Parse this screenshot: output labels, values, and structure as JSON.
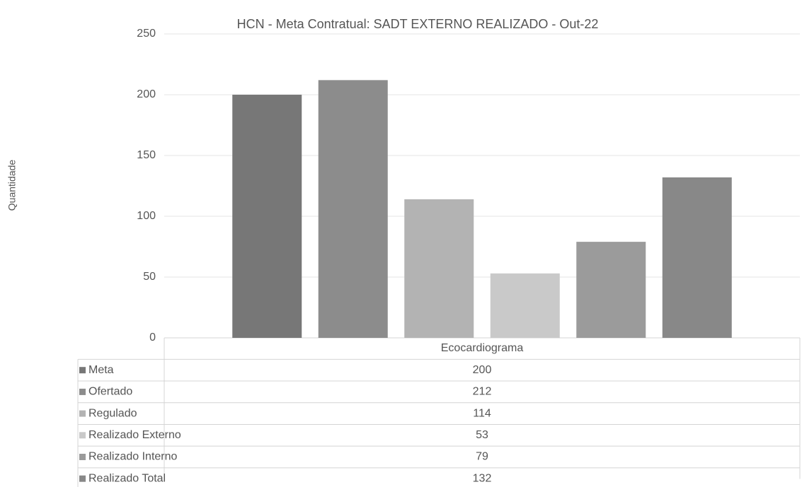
{
  "chart_data": {
    "type": "bar",
    "title": "HCN - Meta Contratual: SADT EXTERNO REALIZADO - Out-22",
    "y_label": "Quantidade",
    "categories": [
      "Ecocardiograma"
    ],
    "series": [
      {
        "name": "Meta",
        "color": "#777777",
        "values": [
          200
        ]
      },
      {
        "name": "Ofertado",
        "color": "#8c8c8c",
        "values": [
          212
        ]
      },
      {
        "name": "Regulado",
        "color": "#b3b3b3",
        "values": [
          114
        ]
      },
      {
        "name": "Realizado Externo",
        "color": "#c9c9c9",
        "values": [
          53
        ]
      },
      {
        "name": "Realizado Interno",
        "color": "#9b9b9b",
        "values": [
          79
        ]
      },
      {
        "name": "Realizado Total",
        "color": "#888888",
        "values": [
          132
        ]
      }
    ],
    "ylim": [
      0,
      250
    ],
    "yticks": [
      0,
      50,
      100,
      150,
      200,
      250
    ],
    "grid": true
  }
}
